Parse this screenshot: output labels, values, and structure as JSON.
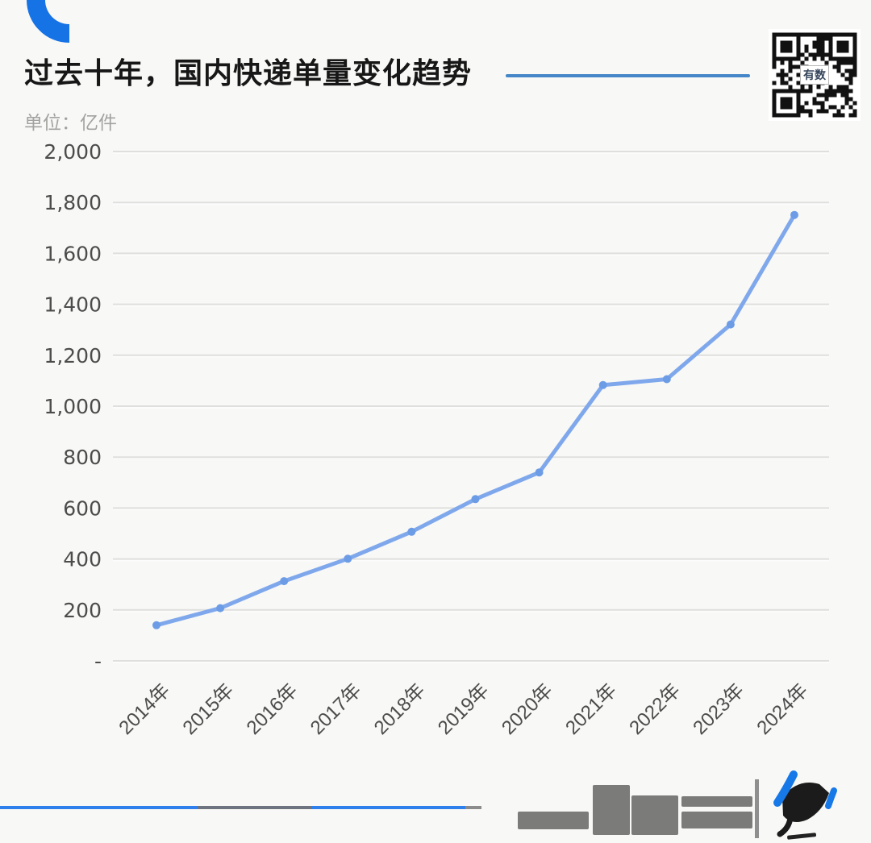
{
  "header": {
    "title": "过去十年，国内快递单量变化趋势",
    "subtitle": "单位：亿件"
  },
  "qr": {
    "center_label": "有数"
  },
  "chart_data": {
    "type": "line",
    "title": "过去十年，国内快递单量变化趋势",
    "unit": "亿件",
    "categories": [
      "2014年",
      "2015年",
      "2016年",
      "2017年",
      "2018年",
      "2019年",
      "2020年",
      "2021年",
      "2022年",
      "2023年",
      "2024年"
    ],
    "values": [
      140,
      207,
      313,
      401,
      507,
      635,
      740,
      1083,
      1106,
      1321,
      1751
    ],
    "ylim": [
      0,
      2000
    ],
    "ytick_step": 200,
    "ytick_labels_top_to_bottom": [
      "2,000",
      "1,800",
      "1,600",
      "1,400",
      "1,200",
      "1,000",
      "800",
      "600",
      "400",
      "200",
      "-"
    ],
    "grid": true,
    "legend": "none",
    "line_color": "#7FA8EC",
    "marker_color": "#6D9CE6"
  },
  "colors": {
    "background": "#F8F8F6",
    "title_text": "#171717",
    "title_underline": "#4486C8",
    "subtitle_text": "#A3A3A1",
    "gridline": "#DFDFDD",
    "axis_text": "#4C4C4C",
    "line": "#7FA8EC",
    "marker": "#6D9CE6",
    "corner_arc": "#1673E6",
    "footer_line_blue": "#2F80ED",
    "footer_line_gray": "#6F7580",
    "watermark_gray": "#7B7B79",
    "logo_ink": "#1B1B1B",
    "logo_blue": "#1778E8"
  }
}
